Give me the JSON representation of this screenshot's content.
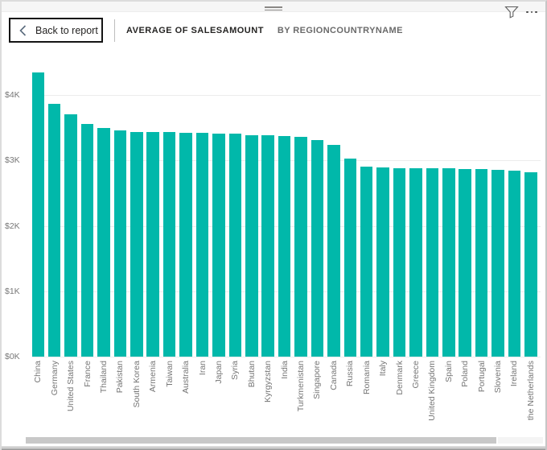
{
  "header": {
    "back_label": "Back to report",
    "title": "AVERAGE OF SALESAMOUNT",
    "subtitle": "BY REGIONCOUNTRYNAME",
    "icons": {
      "back": "chevron-left-icon",
      "filter": "funnel-icon",
      "more": "ellipsis-icon",
      "drag": "drag-handle-icon"
    }
  },
  "colors": {
    "bar": "#01B8AA",
    "title": "#252423",
    "subtitle": "#6A6A6A",
    "axis_label": "#777777",
    "gridline": "#ECECEC"
  },
  "chart_data": {
    "type": "bar",
    "title": "AVERAGE OF SALESAMOUNT BY REGIONCOUNTRYNAME",
    "xlabel": "",
    "ylabel": "",
    "categories": [
      "China",
      "Germany",
      "United States",
      "France",
      "Thailand",
      "Pakistan",
      "South Korea",
      "Armenia",
      "Taiwan",
      "Australia",
      "Iran",
      "Japan",
      "Syria",
      "Bhutan",
      "Kyrgyzstan",
      "India",
      "Turkmenistan",
      "Singapore",
      "Canada",
      "Russia",
      "Romania",
      "Italy",
      "Denmark",
      "Greece",
      "United Kingdom",
      "Spain",
      "Poland",
      "Portugal",
      "Slovenia",
      "Ireland",
      "the Netherlands"
    ],
    "values": [
      4350,
      3870,
      3700,
      3560,
      3490,
      3460,
      3440,
      3435,
      3430,
      3425,
      3420,
      3415,
      3405,
      3390,
      3385,
      3375,
      3360,
      3310,
      3240,
      3030,
      2905,
      2890,
      2885,
      2882,
      2880,
      2876,
      2872,
      2868,
      2860,
      2848,
      2820
    ],
    "y_ticks": [
      "$0K",
      "$1K",
      "$2K",
      "$3K",
      "$4K"
    ],
    "y_tick_values": [
      0,
      1000,
      2000,
      3000,
      4000
    ],
    "ylim": [
      0,
      4400
    ],
    "grid": true,
    "legend": false,
    "bar_color": "#01B8AA"
  }
}
